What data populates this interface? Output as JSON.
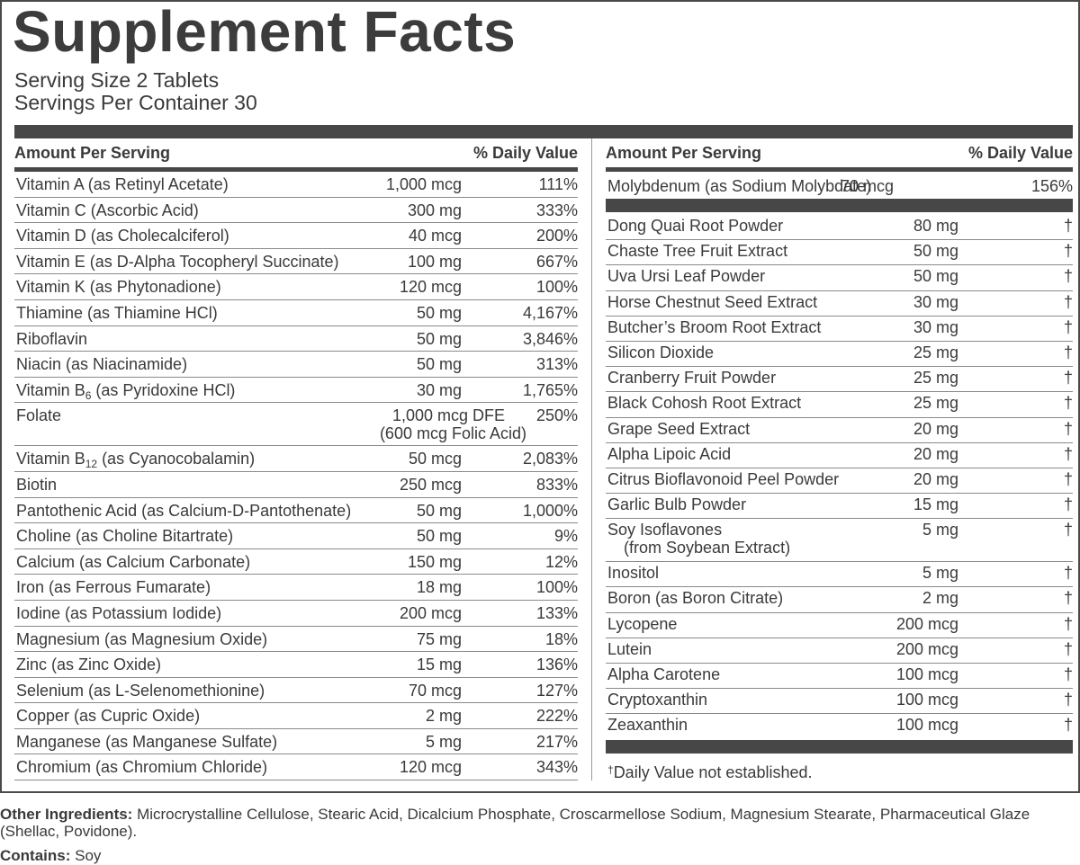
{
  "title": "Supplement Facts",
  "serving_size": "Serving Size 2 Tablets",
  "servings_per_container": "Servings Per Container 30",
  "left": {
    "header_amount": "Amount Per Serving",
    "header_dv": "% Daily Value",
    "rows": [
      {
        "name": "Vitamin A (as Retinyl Acetate)",
        "amount": "1,000 mcg",
        "dv": "111%"
      },
      {
        "name": "Vitamin C (Ascorbic Acid)",
        "amount": "300 mg",
        "dv": "333%"
      },
      {
        "name": "Vitamin D (as Cholecalciferol)",
        "amount": "40 mcg",
        "dv": "200%"
      },
      {
        "name": "Vitamin E (as D-Alpha Tocopheryl Succinate)",
        "amount": "100 mg",
        "dv": "667%"
      },
      {
        "name": "Vitamin K (as Phytonadione)",
        "amount": "120 mcg",
        "dv": "100%"
      },
      {
        "name": "Thiamine (as Thiamine HCl)",
        "amount": "50 mg",
        "dv": "4,167%"
      },
      {
        "name": "Riboflavin",
        "amount": "50 mg",
        "dv": "3,846%"
      },
      {
        "name": "Niacin (as Niacinamide)",
        "amount": "50 mg",
        "dv": "313%"
      },
      {
        "name_pre": "Vitamin B",
        "name_sub": "6",
        "name_post": " (as Pyridoxine HCl)",
        "amount": "30 mg",
        "dv": "1,765%"
      },
      {
        "name": "Folate",
        "amount": "1,000 mcg DFE",
        "amount2": "(600 mcg Folic Acid)",
        "dv": "250%"
      },
      {
        "name_pre": "Vitamin B",
        "name_sub": "12",
        "name_post": " (as Cyanocobalamin)",
        "amount": "50 mcg",
        "dv": "2,083%"
      },
      {
        "name": "Biotin",
        "amount": "250 mcg",
        "dv": "833%"
      },
      {
        "name": "Pantothenic Acid (as Calcium-D-Pantothenate)",
        "amount": "50 mg",
        "dv": "1,000%"
      },
      {
        "name": "Choline (as Choline Bitartrate)",
        "amount": "50 mg",
        "dv": "9%"
      },
      {
        "name": "Calcium (as Calcium Carbonate)",
        "amount": "150 mg",
        "dv": "12%"
      },
      {
        "name": "Iron (as Ferrous Fumarate)",
        "amount": "18 mg",
        "dv": "100%"
      },
      {
        "name": "Iodine (as Potassium Iodide)",
        "amount": "200 mcg",
        "dv": "133%"
      },
      {
        "name": "Magnesium (as Magnesium Oxide)",
        "amount": "75 mg",
        "dv": "18%"
      },
      {
        "name": "Zinc (as Zinc Oxide)",
        "amount": "15 mg",
        "dv": "136%"
      },
      {
        "name": "Selenium (as L-Selenomethionine)",
        "amount": "70 mcg",
        "dv": "127%"
      },
      {
        "name": "Copper (as Cupric Oxide)",
        "amount": "2 mg",
        "dv": "222%"
      },
      {
        "name": "Manganese (as Manganese Sulfate)",
        "amount": "5 mg",
        "dv": "217%"
      },
      {
        "name": "Chromium (as Chromium Chloride)",
        "amount": "120 mcg",
        "dv": "343%"
      }
    ]
  },
  "right": {
    "header_amount": "Amount Per Serving",
    "header_dv": "% Daily Value",
    "first_row": {
      "name": "Molybdenum (as Sodium Molybdate)",
      "amount": "70 mcg",
      "dv": "156%"
    },
    "rows": [
      {
        "name": "Dong Quai Root Powder",
        "amount": "80 mg",
        "dv": "†"
      },
      {
        "name": "Chaste Tree Fruit Extract",
        "amount": "50 mg",
        "dv": "†"
      },
      {
        "name": "Uva Ursi Leaf Powder",
        "amount": "50 mg",
        "dv": "†"
      },
      {
        "name": "Horse Chestnut Seed Extract",
        "amount": "30 mg",
        "dv": "†"
      },
      {
        "name": "Butcher’s Broom Root Extract",
        "amount": "30 mg",
        "dv": "†"
      },
      {
        "name": "Silicon Dioxide",
        "amount": "25 mg",
        "dv": "†"
      },
      {
        "name": "Cranberry Fruit Powder",
        "amount": "25 mg",
        "dv": "†"
      },
      {
        "name": "Black Cohosh Root Extract",
        "amount": "25 mg",
        "dv": "†"
      },
      {
        "name": "Grape Seed Extract",
        "amount": "20 mg",
        "dv": "†"
      },
      {
        "name": "Alpha Lipoic Acid",
        "amount": "20 mg",
        "dv": "†"
      },
      {
        "name": "Citrus Bioflavonoid Peel Powder",
        "amount": "20 mg",
        "dv": "†"
      },
      {
        "name": "Garlic Bulb Powder",
        "amount": "15 mg",
        "dv": "†"
      },
      {
        "name": "Soy Isoflavones",
        "name2": "(from Soybean Extract)",
        "amount": "5 mg",
        "dv": "†"
      },
      {
        "name": "Inositol",
        "amount": "5 mg",
        "dv": "†"
      },
      {
        "name": "Boron (as Boron Citrate)",
        "amount": "2 mg",
        "dv": "†"
      },
      {
        "name": "Lycopene",
        "amount": "200 mcg",
        "dv": "†"
      },
      {
        "name": "Lutein",
        "amount": "200 mcg",
        "dv": "†"
      },
      {
        "name": "Alpha Carotene",
        "amount": "100 mcg",
        "dv": "†"
      },
      {
        "name": "Cryptoxanthin",
        "amount": "100 mcg",
        "dv": "†"
      },
      {
        "name": "Zeaxanthin",
        "amount": "100 mcg",
        "dv": "†"
      }
    ],
    "footnote_symbol": "†",
    "footnote_text": "Daily Value not established."
  },
  "other_ingredients_label": "Other Ingredients:",
  "other_ingredients_text": " Microcrystalline Cellulose, Stearic Acid, Dicalcium Phosphate, Croscarmellose Sodium, Magnesium Stearate, Pharmaceutical Glaze (Shellac, Povidone).",
  "contains_label": "Contains:",
  "contains_text": " Soy"
}
